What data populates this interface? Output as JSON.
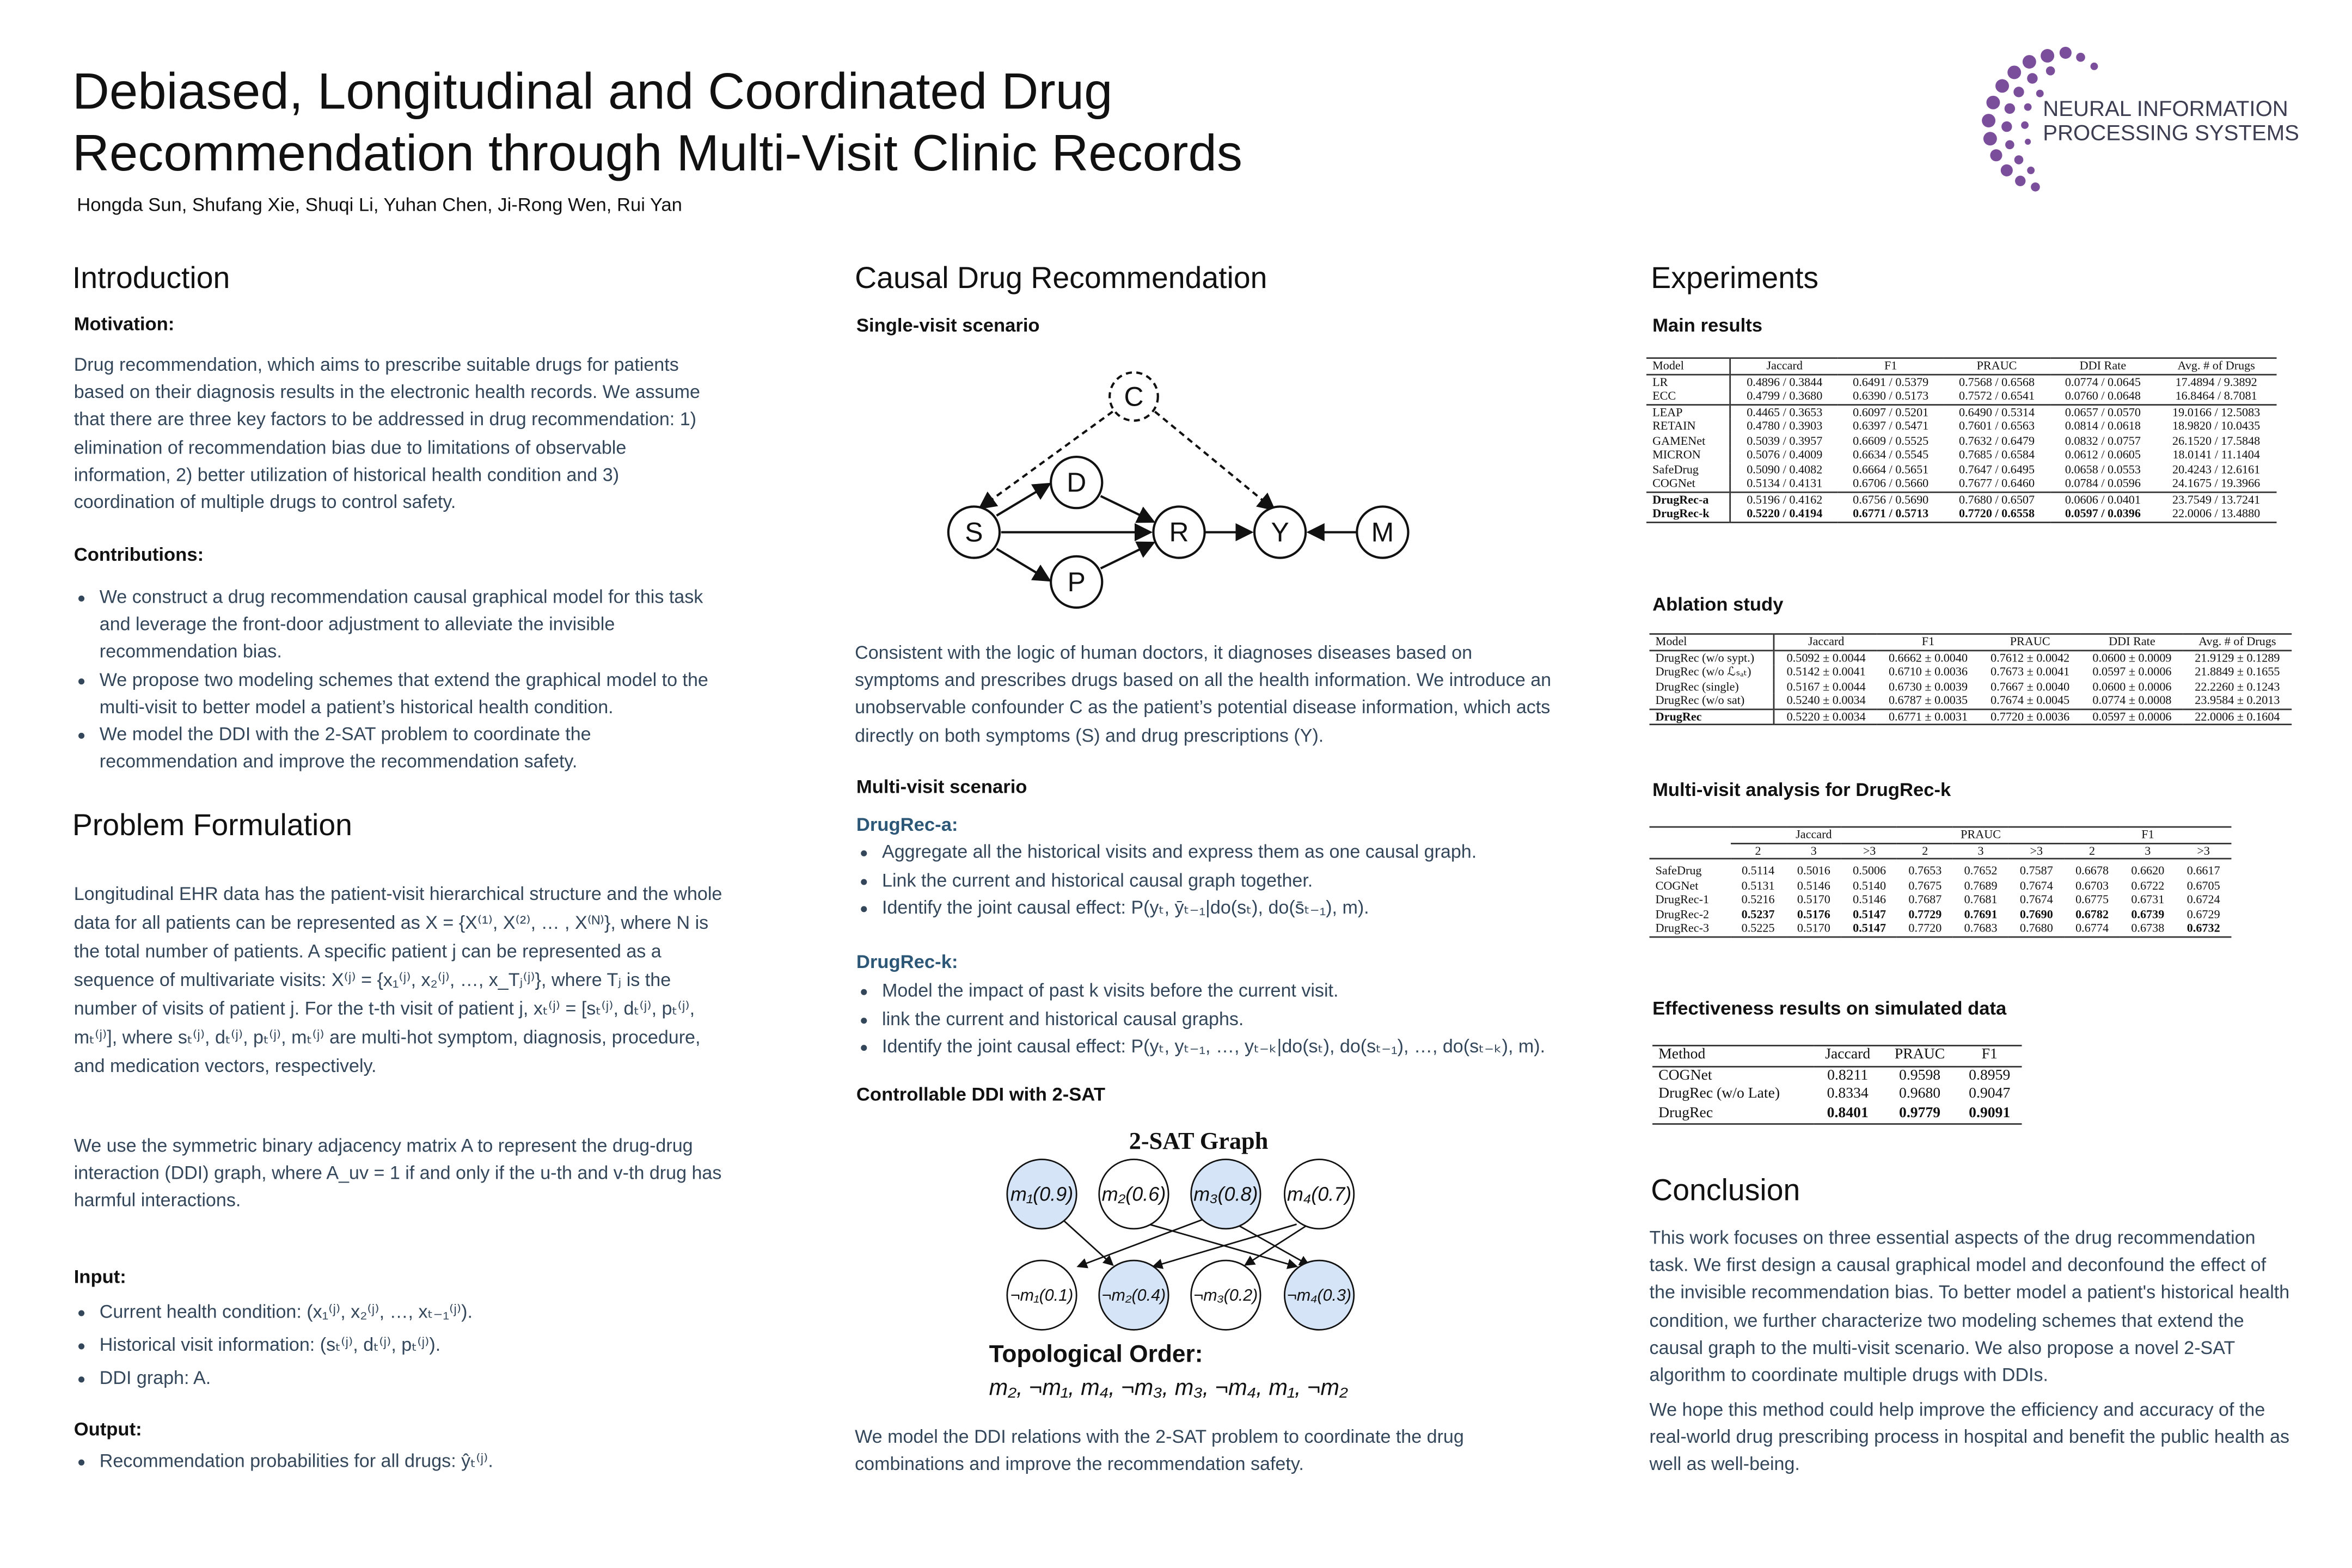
{
  "header": {
    "title_lines": [
      "Debiased, Longitudinal and Coordinated Drug",
      "Recommendation through Multi-Visit Clinic Records"
    ],
    "authors": "Hongda Sun, Shufang Xie, Shuqi Li, Yuhan Chen, Ji-Rong Wen, Rui Yan",
    "logo_lines": [
      "NEURAL INFORMATION",
      "PROCESSING SYSTEMS"
    ]
  },
  "introduction": {
    "heading": "Introduction",
    "motivation_heading": "Motivation:",
    "motivation_text": "Drug recommendation, which aims to prescribe suitable drugs for patients based on their diagnosis results in the electronic health records. We assume that there are three key factors to be addressed in drug recommendation: 1) elimination of recommendation bias due to limitations of observable information, 2) better utilization of historical health condition and 3) coordination of multiple drugs to control safety.",
    "contributions_heading": "Contributions:",
    "contributions": [
      "We construct a drug recommendation causal graphical model for this task and leverage the front-door adjustment to alleviate the invisible recommendation bias.",
      "We propose two modeling schemes that extend the graphical model to the multi-visit to better model a patient’s historical health condition.",
      "We model the DDI with the 2-SAT problem to coordinate the recommendation and improve the recommendation safety."
    ]
  },
  "problem": {
    "heading": "Problem Formulation",
    "paragraphs": [
      "Longitudinal EHR data has the patient-visit hierarchical structure and the whole data for all patients can be represented as X = {X⁽¹⁾, X⁽²⁾, … , X⁽ᴺ⁾}, where N is the total number of patients. A specific patient j can be represented as a sequence of multivariate visits: X⁽ʲ⁾ = {x₁⁽ʲ⁾, x₂⁽ʲ⁾, …, x_Tⱼ⁽ʲ⁾}, where Tⱼ is the number of visits of patient j. For the t-th visit of patient j, xₜ⁽ʲ⁾ = [sₜ⁽ʲ⁾, dₜ⁽ʲ⁾, pₜ⁽ʲ⁾, mₜ⁽ʲ⁾], where sₜ⁽ʲ⁾, dₜ⁽ʲ⁾, pₜ⁽ʲ⁾, mₜ⁽ʲ⁾ are multi-hot symptom, diagnosis, procedure, and medication vectors, respectively.",
      "We use the symmetric binary adjacency matrix A to represent the drug-drug interaction (DDI) graph, where A_uv = 1 if and only if the u-th and v-th drug has harmful interactions."
    ],
    "input_heading": "Input:",
    "inputs": [
      "Current health condition: (x₁⁽ʲ⁾, x₂⁽ʲ⁾, …, xₜ₋₁⁽ʲ⁾).",
      "Historical visit information: (sₜ⁽ʲ⁾, dₜ⁽ʲ⁾, pₜ⁽ʲ⁾).",
      "DDI graph: A."
    ],
    "output_heading": "Output:",
    "outputs": [
      "Recommendation probabilities for all drugs: ŷₜ⁽ʲ⁾."
    ]
  },
  "causal": {
    "heading": "Causal Drug Recommendation",
    "single_heading": "Single-visit scenario",
    "graph_nodes": [
      "C",
      "D",
      "S",
      "P",
      "R",
      "Y",
      "M"
    ],
    "single_text": "Consistent with the logic of human doctors, it diagnoses diseases based on symptoms and prescribes drugs based on all the health information. We introduce an unobservable confounder C as the patient’s potential disease information, which acts directly on both symptoms (S) and drug prescriptions (Y).",
    "multi_heading": "Multi-visit scenario",
    "a_heading": "DrugRec-a:",
    "a_items": [
      "Aggregate all the historical visits and express them as one causal graph.",
      "Link the current and historical causal graph together.",
      "Identify the joint causal effect: P(yₜ, ȳₜ₋₁|do(sₜ), do(s̄ₜ₋₁), m)."
    ],
    "k_heading": "DrugRec-k:",
    "k_items": [
      "Model the impact of past k visits before the current visit.",
      "link the current and historical causal graphs.",
      "Identify the joint causal effect: P(yₜ, yₜ₋₁, …, yₜ₋ₖ|do(sₜ), do(sₜ₋₁), …, do(sₜ₋ₖ), m)."
    ],
    "ddi_heading": "Controllable DDI with 2-SAT",
    "sat_title": "2-SAT Graph",
    "sat_top": [
      "m₁(0.9)",
      "m₂(0.6)",
      "m₃(0.8)",
      "m₄(0.7)"
    ],
    "sat_bottom": [
      "¬m₁(0.1)",
      "¬m₂(0.4)",
      "¬m₃(0.2)",
      "¬m₄(0.3)"
    ],
    "topo_title": "Topological Order:",
    "topo_order": "m₂, ¬m₁, m₄, ¬m₃, m₃, ¬m₄, m₁, ¬m₂",
    "ddi_text": "We model the DDI relations with the 2-SAT problem to coordinate the drug combinations and improve the recommendation safety."
  },
  "experiments": {
    "heading": "Experiments",
    "main_heading": "Main results",
    "main_table": {
      "header": [
        "Model",
        "Jaccard",
        "F1",
        "PRAUC",
        "DDI Rate",
        "Avg. # of Drugs"
      ],
      "groups": [
        [
          [
            "LR",
            "0.4896 / 0.3844",
            "0.6491 / 0.5379",
            "0.7568 / 0.6568",
            "0.0774 / 0.0645",
            "17.4894 / 9.3892"
          ],
          [
            "ECC",
            "0.4799 / 0.3680",
            "0.6390 / 0.5173",
            "0.7572 / 0.6541",
            "0.0760 / 0.0648",
            "16.8464 / 8.7081"
          ]
        ],
        [
          [
            "LEAP",
            "0.4465 / 0.3653",
            "0.6097 / 0.5201",
            "0.6490 / 0.5314",
            "0.0657 / 0.0570",
            "19.0166 / 12.5083"
          ],
          [
            "RETAIN",
            "0.4780 / 0.3903",
            "0.6397 / 0.5471",
            "0.7601 / 0.6563",
            "0.0814 / 0.0618",
            "18.9820 / 10.0435"
          ],
          [
            "GAMENet",
            "0.5039 / 0.3957",
            "0.6609 / 0.5525",
            "0.7632 / 0.6479",
            "0.0832 / 0.0757",
            "26.1520 / 17.5848"
          ],
          [
            "MICRON",
            "0.5076 / 0.4009",
            "0.6634 / 0.5545",
            "0.7685 / 0.6584",
            "0.0612 / 0.0605",
            "18.0141 / 11.1404"
          ],
          [
            "SafeDrug",
            "0.5090 / 0.4082",
            "0.6664 / 0.5651",
            "0.7647 / 0.6495",
            "0.0658 / 0.0553",
            "20.4243 / 12.6161"
          ],
          [
            "COGNet",
            "0.5134 / 0.4131",
            "0.6706 / 0.5660",
            "0.7677 / 0.6460",
            "0.0784 / 0.0596",
            "24.1675 / 19.3966"
          ]
        ],
        [
          [
            "DrugRec-a",
            "0.5196 / 0.4162",
            "0.6756 / 0.5690",
            "0.7680 / 0.6507",
            "0.0606 / 0.0401",
            "23.7549 / 13.7241"
          ],
          [
            "DrugRec-k",
            "0.5220 / 0.4194",
            "0.6771 / 0.5713",
            "0.7720 / 0.6558",
            "0.0597 / 0.0396",
            "22.0006 / 13.4880"
          ]
        ]
      ]
    },
    "ablation_heading": "Ablation study",
    "ablation_table": {
      "header": [
        "Model",
        "Jaccard",
        "F1",
        "PRAUC",
        "DDI Rate",
        "Avg. # of Drugs"
      ],
      "groups": [
        [
          [
            "DrugRec (w/o sypt.)",
            "0.5092 ± 0.0044",
            "0.6662 ± 0.0040",
            "0.7612 ± 0.0042",
            "0.0600 ± 0.0009",
            "21.9129 ± 0.1289"
          ],
          [
            "DrugRec (w/o ℒₛₐₜ)",
            "0.5142 ± 0.0041",
            "0.6710 ± 0.0036",
            "0.7673 ± 0.0041",
            "0.0597 ± 0.0006",
            "21.8849 ± 0.1655"
          ],
          [
            "DrugRec (single)",
            "0.5167 ± 0.0044",
            "0.6730 ± 0.0039",
            "0.7667 ± 0.0040",
            "0.0600 ± 0.0006",
            "22.2260 ± 0.1243"
          ],
          [
            "DrugRec (w/o sat)",
            "0.5240 ± 0.0034",
            "0.6787 ± 0.0035",
            "0.7674 ± 0.0045",
            "0.0774 ± 0.0008",
            "23.9584 ± 0.2013"
          ]
        ],
        [
          [
            "DrugRec",
            "0.5220 ± 0.0034",
            "0.6771 ± 0.0031",
            "0.7720 ± 0.0036",
            "0.0597 ± 0.0006",
            "22.0006 ± 0.1604"
          ]
        ]
      ]
    },
    "multi_heading": "Multi-visit analysis for DrugRec-k",
    "multi_table": {
      "column_groups": [
        "Jaccard",
        "PRAUC",
        "F1"
      ],
      "header": [
        "2",
        "3",
        ">3",
        "2",
        "3",
        ">3",
        "2",
        "3",
        ">3"
      ],
      "groups": [
        [
          [
            "SafeDrug",
            "0.5114",
            "0.5016",
            "0.5006",
            "0.7653",
            "0.7652",
            "0.7587",
            "0.6678",
            "0.6620",
            "0.6617"
          ],
          [
            "COGNet",
            "0.5131",
            "0.5146",
            "0.5140",
            "0.7675",
            "0.7689",
            "0.7674",
            "0.6703",
            "0.6722",
            "0.6705"
          ],
          [
            "DrugRec-1",
            "0.5216",
            "0.5170",
            "0.5146",
            "0.7687",
            "0.7681",
            "0.7674",
            "0.6775",
            "0.6731",
            "0.6724"
          ],
          [
            "DrugRec-2",
            "0.5237",
            "0.5176",
            "0.5147",
            "0.7729",
            "0.7691",
            "0.7690",
            "0.6782",
            "0.6739",
            "0.6729"
          ],
          [
            "DrugRec-3",
            "0.5225",
            "0.5170",
            "0.5147",
            "0.7720",
            "0.7683",
            "0.7680",
            "0.6774",
            "0.6738",
            "0.6732"
          ]
        ]
      ]
    },
    "effect_heading": "Effectiveness results on simulated data",
    "effect_table": {
      "header": [
        "Method",
        "Jaccard",
        "PRAUC",
        "F1"
      ],
      "groups": [
        [
          [
            "COGNet",
            "0.8211",
            "0.9598",
            "0.8959"
          ],
          [
            "DrugRec (w/o Late)",
            "0.8334",
            "0.9680",
            "0.9047"
          ],
          [
            "DrugRec",
            "0.8401",
            "0.9779",
            "0.9091"
          ]
        ]
      ]
    }
  },
  "conclusion": {
    "heading": "Conclusion",
    "paragraphs": [
      "This work focuses on three essential aspects of the drug recommendation task. We first design a causal graphical model and deconfound the effect of the invisible recommendation bias. To better model a patient's historical health condition, we further characterize two modeling schemes that extend the causal graph to the multi-visit scenario. We also propose a novel 2-SAT algorithm to coordinate multiple drugs with DDIs.",
      "We hope this method could help improve the efficiency and accuracy of the real-world drug prescribing process in hospital and benefit the public health as well as well-being."
    ]
  }
}
